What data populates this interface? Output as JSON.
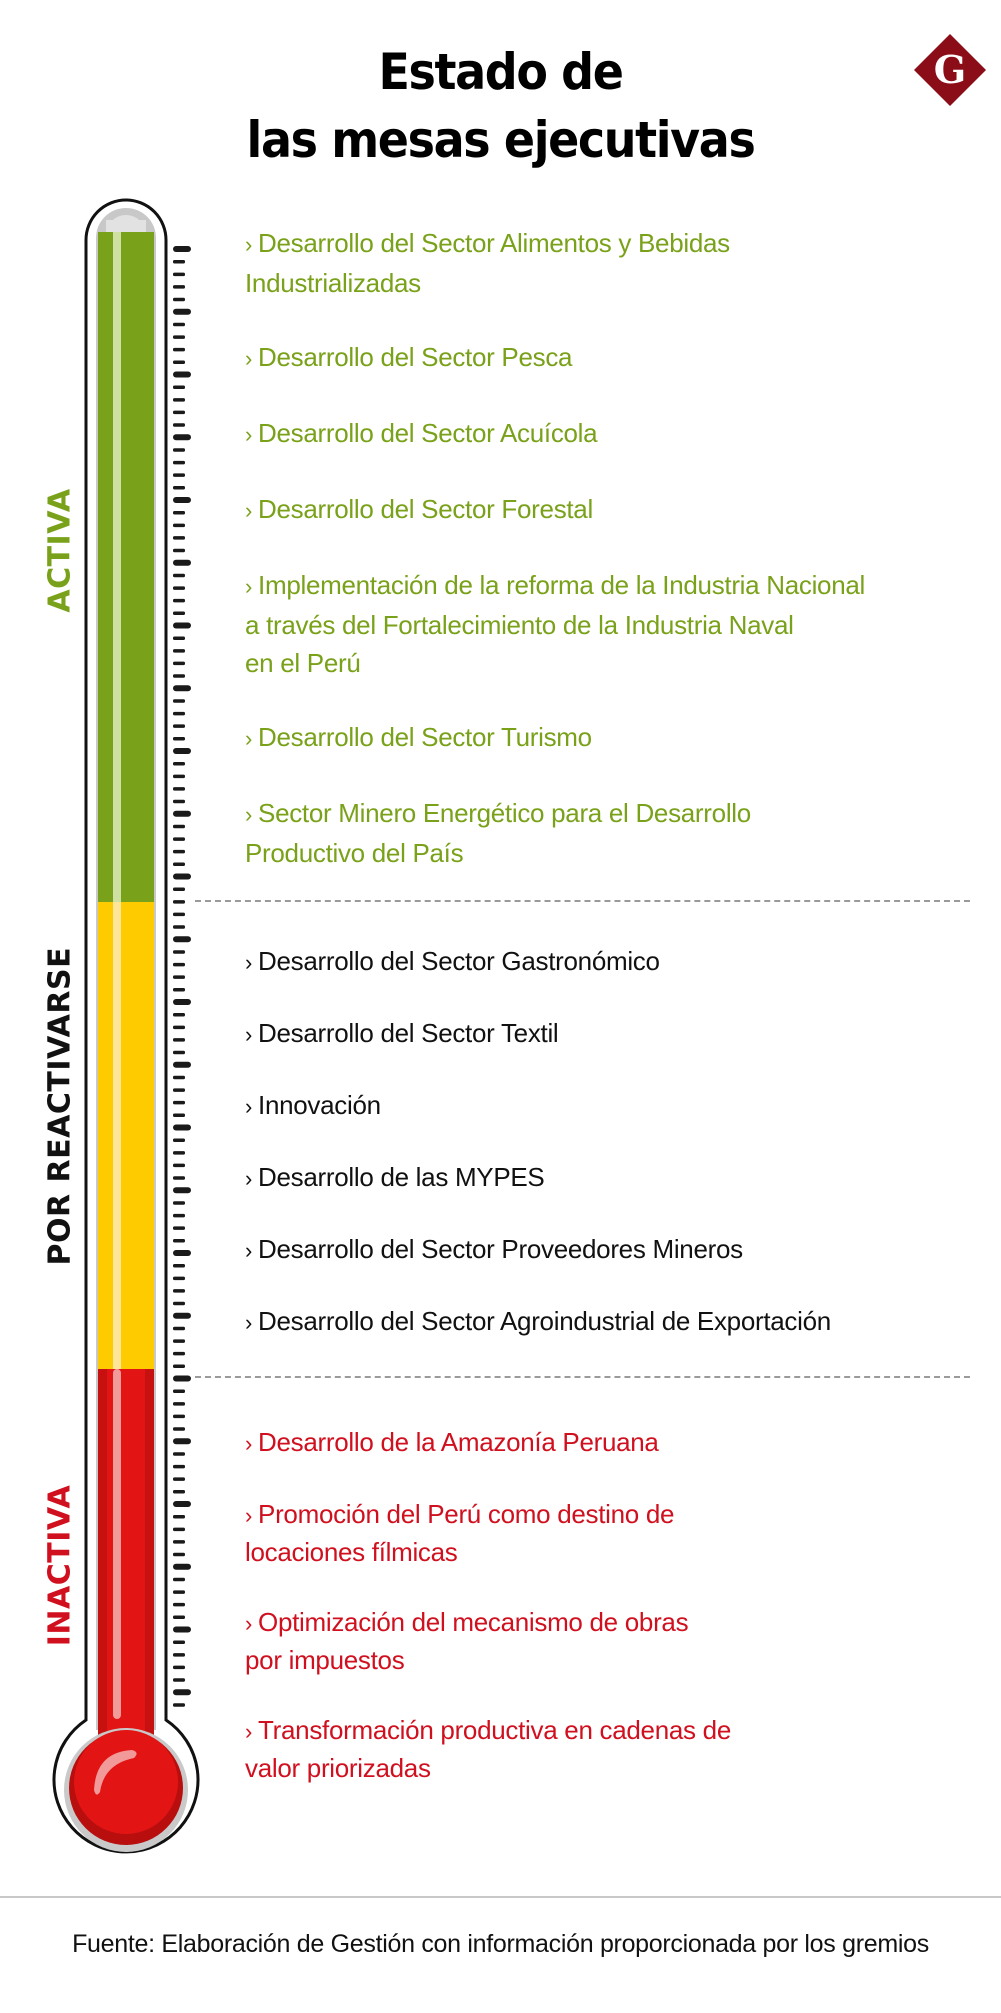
{
  "header": {
    "title_line1": "Estado de",
    "title_line2": "las mesas ejecutivas",
    "logo_letter": "G",
    "logo_color": "#8b0d18"
  },
  "thermometer": {
    "colors": {
      "activa": "#7aa11a",
      "por_reactivarse": "#fdcb00",
      "inactiva": "#e31414",
      "outline": "#111111",
      "glass": "#d0d0d0"
    }
  },
  "sections": {
    "activa": {
      "label": "ACTIVA",
      "color": "#7aa11a",
      "items": [
        {
          "text": "Desarrollo del Sector Alimentos y Bebidas\nIndustrializadas"
        },
        {
          "text": "Desarrollo del Sector Pesca"
        },
        {
          "text": "Desarrollo del Sector Acuícola"
        },
        {
          "text": "Desarrollo del Sector Forestal"
        },
        {
          "text": "Implementación de la reforma de la Industria Nacional\na través del Fortalecimiento de la Industria Naval\nen el Perú"
        },
        {
          "text": "Desarrollo del Sector Turismo"
        },
        {
          "text": "Sector Minero Energético para el Desarrollo\nProductivo del País"
        }
      ]
    },
    "por_reactivarse": {
      "label": "POR REACTIVARSE",
      "color": "#111111",
      "items": [
        {
          "text": "Desarrollo del Sector Gastronómico"
        },
        {
          "text": "Desarrollo del Sector Textil"
        },
        {
          "text": "Innovación"
        },
        {
          "text": "Desarrollo de las MYPES"
        },
        {
          "text": "Desarrollo del Sector Proveedores  Mineros"
        },
        {
          "text": "Desarrollo del Sector Agroindustrial de Exportación"
        }
      ]
    },
    "inactiva": {
      "label": "INACTIVA",
      "color": "#d0101e",
      "items": [
        {
          "text": "Desarrollo de la Amazonía Peruana"
        },
        {
          "text": "Promoción del Perú como destino de\nlocaciones fílmicas"
        },
        {
          "text": "Optimización del mecanismo de obras\npor impuestos"
        },
        {
          "text": "Transformación productiva en cadenas de\nvalor priorizadas"
        }
      ]
    }
  },
  "bullet": "›",
  "footer": {
    "source": "Fuente: Elaboración de Gestión con información proporcionada por los gremios"
  }
}
